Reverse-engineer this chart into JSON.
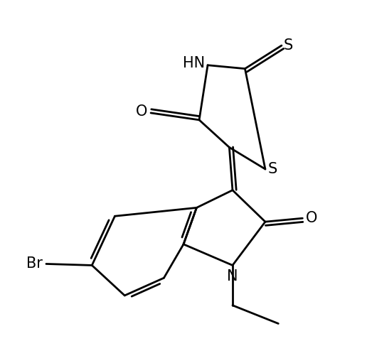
{
  "background_color": "#ffffff",
  "line_color": "#000000",
  "text_color": "#000000",
  "line_width": 2.0,
  "figsize": [
    5.16,
    4.8
  ],
  "dpi": 100,
  "xlim": [
    0,
    10
  ],
  "ylim": [
    0,
    10
  ]
}
